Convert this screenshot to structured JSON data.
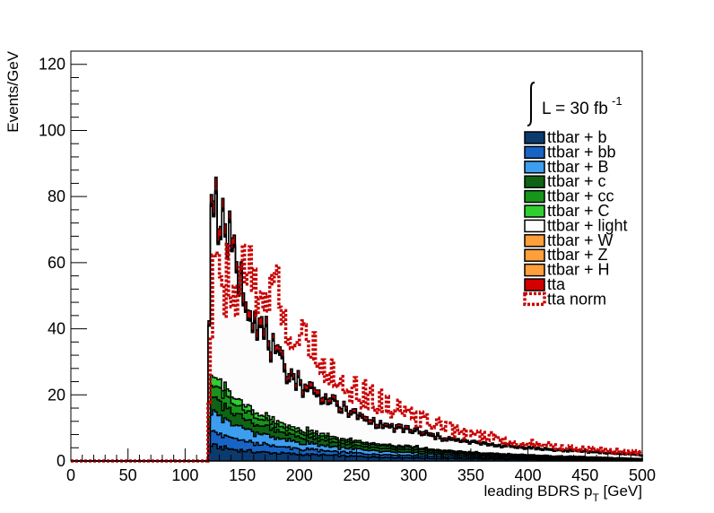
{
  "chart_data": {
    "type": "area",
    "xlabel_main": "leading BDRS p",
    "xlabel_sub": "T",
    "xlabel_unit": " [GeV]",
    "ylabel": "Events/GeV",
    "xlim": [
      0,
      500
    ],
    "ylim": [
      0,
      124
    ],
    "xticks": [
      0,
      50,
      100,
      150,
      200,
      250,
      300,
      350,
      400,
      450,
      500
    ],
    "yticks": [
      0,
      20,
      40,
      60,
      80,
      100,
      120
    ],
    "grid": false,
    "legend_placement": "top-right",
    "lumi": {
      "prefix": "L = 30 fb",
      "sup": "-1"
    },
    "bin_width": 2,
    "cutoff_x": 120,
    "peak_x": 122,
    "anchor_x": [
      120,
      122,
      125,
      130,
      140,
      150,
      160,
      170,
      180,
      190,
      200,
      220,
      240,
      260,
      280,
      300,
      320,
      340,
      360,
      380,
      400,
      420,
      440,
      460,
      480,
      500
    ],
    "series": [
      {
        "name": "ttbar + b",
        "color": "#0b3a6e",
        "values": [
          0,
          5,
          4.5,
          4.2,
          3.6,
          3.2,
          2.8,
          2.6,
          2.4,
          2.2,
          2.0,
          1.8,
          1.5,
          1.3,
          1.1,
          1.0,
          0.8,
          0.7,
          0.6,
          0.5,
          0.45,
          0.4,
          0.35,
          0.3,
          0.25,
          0.2
        ]
      },
      {
        "name": "ttbar + bb",
        "color": "#1864c4",
        "values": [
          0,
          4,
          4.0,
          3.8,
          3.3,
          3.0,
          2.6,
          2.3,
          2.0,
          1.8,
          1.6,
          1.3,
          1.1,
          0.9,
          0.8,
          0.7,
          0.6,
          0.5,
          0.4,
          0.35,
          0.3,
          0.25,
          0.2,
          0.2,
          0.15,
          0.1
        ]
      },
      {
        "name": "ttbar + B",
        "color": "#3d9ef0",
        "values": [
          0,
          6,
          5.5,
          5.0,
          4.3,
          3.8,
          3.3,
          2.9,
          2.5,
          2.2,
          2.0,
          1.6,
          1.3,
          1.1,
          0.9,
          0.8,
          0.6,
          0.5,
          0.45,
          0.4,
          0.35,
          0.3,
          0.25,
          0.2,
          0.2,
          0.15
        ]
      },
      {
        "name": "ttbar + c",
        "color": "#0e6414",
        "values": [
          0,
          5,
          4.5,
          4.2,
          3.6,
          3.2,
          2.8,
          2.5,
          2.2,
          2.0,
          1.8,
          1.5,
          1.2,
          1.0,
          0.9,
          0.8,
          0.6,
          0.5,
          0.45,
          0.4,
          0.35,
          0.3,
          0.25,
          0.2,
          0.15,
          0.1
        ]
      },
      {
        "name": "ttbar + cc",
        "color": "#17951b",
        "values": [
          0,
          4,
          3.8,
          3.6,
          3.0,
          2.6,
          2.2,
          1.9,
          1.7,
          1.5,
          1.3,
          1.1,
          0.9,
          0.8,
          0.7,
          0.6,
          0.5,
          0.4,
          0.35,
          0.3,
          0.25,
          0.2,
          0.2,
          0.15,
          0.1,
          0.1
        ]
      },
      {
        "name": "ttbar + C",
        "color": "#2fcf30",
        "values": [
          0,
          3,
          2.7,
          2.5,
          2.1,
          1.8,
          1.6,
          1.4,
          1.2,
          1.0,
          0.9,
          0.8,
          0.6,
          0.5,
          0.45,
          0.4,
          0.35,
          0.3,
          0.25,
          0.2,
          0.2,
          0.15,
          0.15,
          0.1,
          0.1,
          0.1
        ]
      },
      {
        "name": "ttbar + light",
        "color": "#fcfcfc",
        "values": [
          0,
          56,
          53,
          48,
          43,
          33,
          28,
          23,
          18,
          15.5,
          13,
          10.5,
          8.3,
          6.0,
          5.0,
          4.3,
          3.5,
          2.8,
          2.5,
          2.1,
          1.9,
          1.6,
          1.5,
          1.3,
          1.1,
          0.9
        ]
      },
      {
        "name": "ttbar + W",
        "color": "#ff9f3a",
        "values": [
          0,
          0.3,
          0.3,
          0.3,
          0.3,
          0.25,
          0.25,
          0.2,
          0.2,
          0.2,
          0.15,
          0.15,
          0.1,
          0.1,
          0.1,
          0.1,
          0.1,
          0.05,
          0.05,
          0.05,
          0.05,
          0.05,
          0.05,
          0.05,
          0.05,
          0.05
        ]
      },
      {
        "name": "ttbar + Z",
        "color": "#ff9f3a",
        "values": [
          0,
          0.3,
          0.3,
          0.3,
          0.3,
          0.25,
          0.25,
          0.2,
          0.2,
          0.2,
          0.15,
          0.15,
          0.1,
          0.1,
          0.1,
          0.1,
          0.1,
          0.05,
          0.05,
          0.05,
          0.05,
          0.05,
          0.05,
          0.05,
          0.05,
          0.05
        ]
      },
      {
        "name": "ttbar + H",
        "color": "#ff9f3a",
        "values": [
          0,
          0.3,
          0.3,
          0.3,
          0.3,
          0.25,
          0.25,
          0.2,
          0.2,
          0.2,
          0.15,
          0.15,
          0.1,
          0.1,
          0.1,
          0.1,
          0.1,
          0.05,
          0.05,
          0.05,
          0.05,
          0.05,
          0.05,
          0.05,
          0.05,
          0.05
        ]
      },
      {
        "name": "tta",
        "color": "#d40000",
        "values": [
          0,
          2,
          3.5,
          3.5,
          3.0,
          2.7,
          2.5,
          2.2,
          1.9,
          1.7,
          1.5,
          1.3,
          1.1,
          0.9,
          0.8,
          0.7,
          0.6,
          0.5,
          0.45,
          0.4,
          0.35,
          0.3,
          0.25,
          0.2,
          0.2,
          0.15
        ]
      }
    ],
    "tta_norm": {
      "name": "tta norm",
      "color": "#c80000",
      "values": [
        0,
        30,
        52,
        52,
        55,
        57,
        55,
        53,
        50,
        43,
        36,
        30,
        23,
        19.5,
        16,
        13.5,
        11,
        8.8,
        7.5,
        6.2,
        5.4,
        4.6,
        4.0,
        3.4,
        2.9,
        2.5
      ]
    }
  }
}
